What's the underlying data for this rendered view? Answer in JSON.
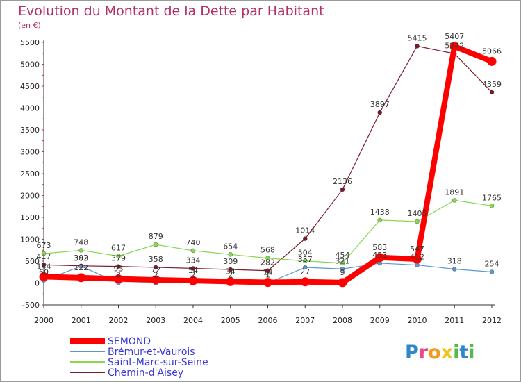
{
  "chart_data": {
    "type": "line",
    "title": "Evolution du Montant de la Dette par Habitant",
    "subtitle": "(en €)",
    "x": [
      "2000",
      "2001",
      "2002",
      "2003",
      "2004",
      "2005",
      "2006",
      "2007",
      "2008",
      "2009",
      "2010",
      "2011",
      "2012"
    ],
    "ylim": [
      -500,
      5500
    ],
    "yticks": [
      -500,
      0,
      500,
      1000,
      1500,
      2000,
      2500,
      3000,
      3500,
      4000,
      4500,
      5000,
      5500
    ],
    "grid": false,
    "legend_position": "bottom-left",
    "series": [
      {
        "name": "Chemin-d'Aisey",
        "color": "#7a1a2a",
        "values": [
          417,
          392,
          379,
          358,
          334,
          309,
          282,
          1014,
          2136,
          3897,
          5415,
          5242,
          4359
        ],
        "labels": [
          "417",
          "392",
          "379",
          "358",
          "334",
          "309",
          "282",
          "1014",
          "2136",
          "3897",
          "5415",
          "5242",
          "4359"
        ]
      },
      {
        "name": "Saint-Marc-sur-Seine",
        "color": "#88d850",
        "values": [
          673,
          748,
          617,
          879,
          740,
          654,
          568,
          504,
          454,
          1438,
          1405,
          1891,
          1765
        ],
        "labels": [
          "673",
          "748",
          "617",
          "879",
          "740",
          "654",
          "568",
          "504",
          "454",
          "1438",
          "1405",
          "1891",
          "1765"
        ]
      },
      {
        "name": "Brémur-et-Vaurois",
        "color": "#5b98d0",
        "values": [
          60,
          383,
          3,
          2,
          2,
          2,
          1,
          357,
          321,
          453,
          412,
          318,
          254
        ],
        "labels": [
          "60",
          "383",
          "3",
          "2",
          "2",
          "2",
          "1",
          "357",
          "321",
          "453",
          "412",
          "318",
          "254"
        ]
      },
      {
        "name": "SEMOND",
        "color": "#ff0000",
        "values": [
          144,
          122,
          93,
          72,
          54,
          34,
          14,
          27,
          9,
          583,
          547,
          5407,
          5066
        ],
        "labels": [
          "144",
          "122",
          "93",
          "72",
          "54",
          "34",
          "14",
          "27",
          "9",
          "583",
          "547",
          "5407",
          "5066"
        ]
      }
    ]
  },
  "legend": {
    "items": [
      {
        "name": "SEMOND",
        "color": "#ff0000"
      },
      {
        "name": "Brémur-et-Vaurois",
        "color": "#5b98d0"
      },
      {
        "name": "Saint-Marc-sur-Seine",
        "color": "#88d850"
      },
      {
        "name": "Chemin-d'Aisey",
        "color": "#7a1a2a"
      }
    ]
  },
  "logo": {
    "letters": [
      "P",
      "r",
      "o",
      "x",
      "i",
      "t",
      "i"
    ],
    "colors": [
      "#2e88c8",
      "#e84a8a",
      "#f29a1e",
      "#f2c21e",
      "#58b848",
      "#2e88c8",
      "#58b848"
    ]
  }
}
